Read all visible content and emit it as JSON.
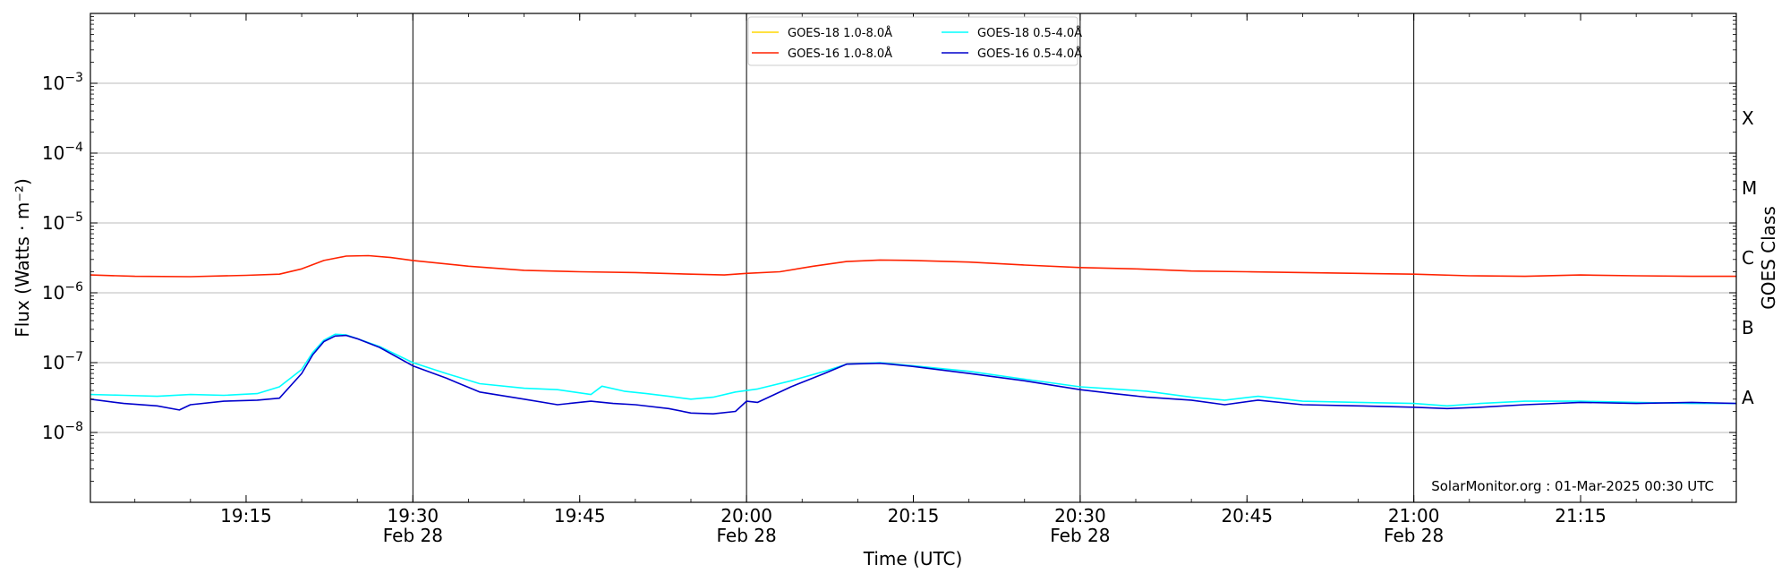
{
  "chart_data": {
    "type": "line",
    "title": "",
    "xlabel": "Time (UTC)",
    "ylabel": "Flux (Watts · m⁻²)",
    "y2label": "GOES Class",
    "yscale": "log",
    "ylim": [
      1e-09,
      0.01
    ],
    "xlim": [
      "19:01",
      "21:29"
    ],
    "grid": "horizontal at decades",
    "legend_position": "top-center",
    "annotation": "SolarMonitor.org : 01-Mar-2025 00:30 UTC",
    "y_ticks": [
      {
        "value": 1e-08,
        "base": "10",
        "exp": "−8"
      },
      {
        "value": 1e-07,
        "base": "10",
        "exp": "−7"
      },
      {
        "value": 1e-06,
        "base": "10",
        "exp": "−6"
      },
      {
        "value": 1e-05,
        "base": "10",
        "exp": "−5"
      },
      {
        "value": 0.0001,
        "base": "10",
        "exp": "−4"
      },
      {
        "value": 0.001,
        "base": "10",
        "exp": "−3"
      }
    ],
    "class_labels": [
      {
        "label": "A",
        "value": 3.16e-08
      },
      {
        "label": "B",
        "value": 3.16e-07
      },
      {
        "label": "C",
        "value": 3.16e-06
      },
      {
        "label": "M",
        "value": 3.16e-05
      },
      {
        "label": "X",
        "value": 0.000316
      }
    ],
    "x_ticks": [
      {
        "time": "19:15",
        "label": "19:15",
        "sub": ""
      },
      {
        "time": "19:30",
        "label": "19:30",
        "sub": "Feb 28"
      },
      {
        "time": "19:45",
        "label": "19:45",
        "sub": ""
      },
      {
        "time": "20:00",
        "label": "20:00",
        "sub": "Feb 28"
      },
      {
        "time": "20:15",
        "label": "20:15",
        "sub": ""
      },
      {
        "time": "20:30",
        "label": "20:30",
        "sub": "Feb 28"
      },
      {
        "time": "20:45",
        "label": "20:45",
        "sub": ""
      },
      {
        "time": "21:00",
        "label": "21:00",
        "sub": "Feb 28"
      },
      {
        "time": "21:15",
        "label": "21:15",
        "sub": ""
      }
    ],
    "vlines": [
      "19:30",
      "20:00",
      "20:30",
      "21:00"
    ],
    "series": [
      {
        "name": "GOES-18 1.0-8.0Å",
        "color": "#ffd700",
        "x": [],
        "values": []
      },
      {
        "name": "GOES-16 1.0-8.0Å",
        "color": "#ff2200",
        "x": [
          "19:01",
          "19:05",
          "19:10",
          "19:15",
          "19:18",
          "19:20",
          "19:22",
          "19:24",
          "19:26",
          "19:28",
          "19:30",
          "19:35",
          "19:40",
          "19:45",
          "19:50",
          "19:55",
          "19:58",
          "20:00",
          "20:03",
          "20:06",
          "20:09",
          "20:12",
          "20:15",
          "20:20",
          "20:25",
          "20:30",
          "20:35",
          "20:40",
          "20:45",
          "20:50",
          "20:55",
          "21:00",
          "21:05",
          "21:10",
          "21:15",
          "21:20",
          "21:25",
          "21:29"
        ],
        "values": [
          1.8e-06,
          1.72e-06,
          1.7e-06,
          1.78e-06,
          1.85e-06,
          2.2e-06,
          2.9e-06,
          3.35e-06,
          3.4e-06,
          3.2e-06,
          2.9e-06,
          2.4e-06,
          2.1e-06,
          2e-06,
          1.95e-06,
          1.85e-06,
          1.8e-06,
          1.9e-06,
          2e-06,
          2.4e-06,
          2.8e-06,
          2.95e-06,
          2.9e-06,
          2.75e-06,
          2.5e-06,
          2.3e-06,
          2.2e-06,
          2.05e-06,
          2e-06,
          1.95e-06,
          1.9e-06,
          1.85e-06,
          1.75e-06,
          1.72e-06,
          1.8e-06,
          1.75e-06,
          1.72e-06,
          1.72e-06
        ]
      },
      {
        "name": "GOES-18 0.5-4.0Å",
        "color": "#00ffff",
        "x": [
          "19:01",
          "19:04",
          "19:07",
          "19:10",
          "19:13",
          "19:16",
          "19:18",
          "19:20",
          "19:21",
          "19:22",
          "19:23",
          "19:24",
          "19:25",
          "19:27",
          "19:30",
          "19:33",
          "19:36",
          "19:40",
          "19:43",
          "19:46",
          "19:47",
          "19:49",
          "19:51",
          "19:53",
          "19:55",
          "19:57",
          "19:59",
          "20:01",
          "20:04",
          "20:07",
          "20:09",
          "20:12",
          "20:15",
          "20:20",
          "20:25",
          "20:30",
          "20:33",
          "20:36",
          "20:40",
          "20:43",
          "20:46",
          "20:50",
          "20:55",
          "21:00",
          "21:03",
          "21:06",
          "21:10",
          "21:15",
          "21:20",
          "21:25",
          "21:29"
        ],
        "values": [
          3.5e-08,
          3.4e-08,
          3.3e-08,
          3.5e-08,
          3.4e-08,
          3.6e-08,
          4.5e-08,
          8e-08,
          1.4e-07,
          2.1e-07,
          2.55e-07,
          2.5e-07,
          2.2e-07,
          1.7e-07,
          1e-07,
          7e-08,
          5e-08,
          4.3e-08,
          4.1e-08,
          3.5e-08,
          4.6e-08,
          3.9e-08,
          3.6e-08,
          3.3e-08,
          3e-08,
          3.2e-08,
          3.8e-08,
          4.2e-08,
          5.5e-08,
          7.5e-08,
          9.5e-08,
          1e-07,
          9e-08,
          7.5e-08,
          5.8e-08,
          4.5e-08,
          4.2e-08,
          3.9e-08,
          3.2e-08,
          2.9e-08,
          3.3e-08,
          2.8e-08,
          2.7e-08,
          2.6e-08,
          2.4e-08,
          2.6e-08,
          2.8e-08,
          2.8e-08,
          2.7e-08,
          2.6e-08,
          2.6e-08
        ]
      },
      {
        "name": "GOES-16 0.5-4.0Å",
        "color": "#0000cc",
        "x": [
          "19:01",
          "19:04",
          "19:07",
          "19:09",
          "19:10",
          "19:13",
          "19:16",
          "19:18",
          "19:20",
          "19:21",
          "19:22",
          "19:23",
          "19:24",
          "19:25",
          "19:27",
          "19:30",
          "19:33",
          "19:36",
          "19:40",
          "19:43",
          "19:46",
          "19:48",
          "19:50",
          "19:53",
          "19:55",
          "19:57",
          "19:59",
          "20:00",
          "20:01",
          "20:04",
          "20:07",
          "20:09",
          "20:12",
          "20:15",
          "20:20",
          "20:25",
          "20:30",
          "20:33",
          "20:36",
          "20:40",
          "20:43",
          "20:46",
          "20:50",
          "20:55",
          "21:00",
          "21:03",
          "21:06",
          "21:10",
          "21:15",
          "21:20",
          "21:25",
          "21:29"
        ],
        "values": [
          3e-08,
          2.6e-08,
          2.4e-08,
          2.1e-08,
          2.5e-08,
          2.8e-08,
          2.9e-08,
          3.1e-08,
          7e-08,
          1.3e-07,
          2e-07,
          2.4e-07,
          2.45e-07,
          2.2e-07,
          1.65e-07,
          9e-08,
          6e-08,
          3.8e-08,
          3e-08,
          2.5e-08,
          2.8e-08,
          2.6e-08,
          2.5e-08,
          2.2e-08,
          1.9e-08,
          1.85e-08,
          2e-08,
          2.8e-08,
          2.7e-08,
          4.5e-08,
          7e-08,
          9.5e-08,
          9.8e-08,
          8.8e-08,
          7e-08,
          5.5e-08,
          4.1e-08,
          3.6e-08,
          3.2e-08,
          2.9e-08,
          2.5e-08,
          2.9e-08,
          2.5e-08,
          2.4e-08,
          2.3e-08,
          2.2e-08,
          2.3e-08,
          2.5e-08,
          2.7e-08,
          2.6e-08,
          2.7e-08,
          2.6e-08
        ]
      }
    ]
  }
}
